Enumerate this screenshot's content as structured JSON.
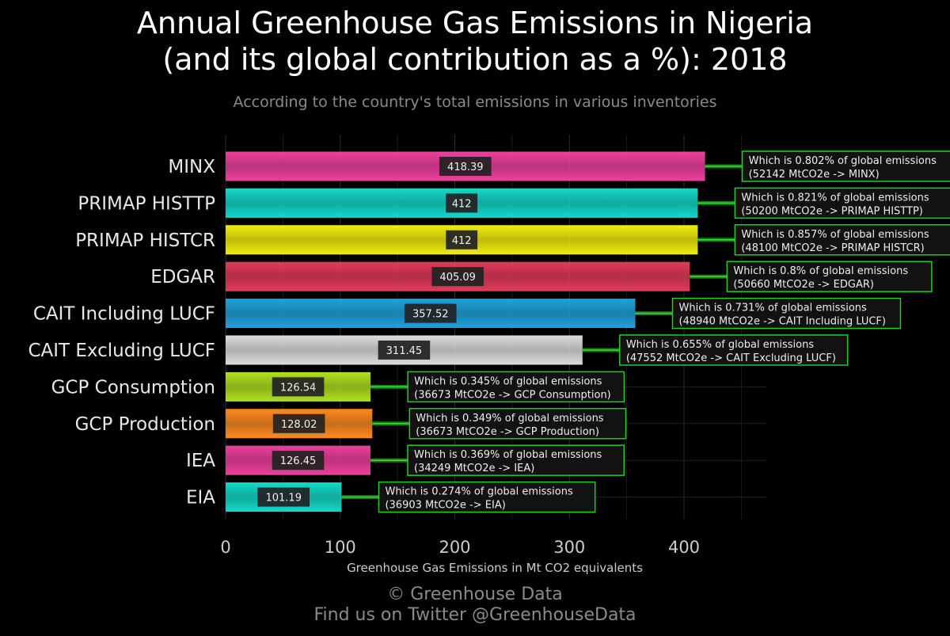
{
  "title_line1": "Annual Greenhouse Gas Emissions in Nigeria",
  "title_line2": "(and its global contribution as a %): 2018",
  "subtitle": "According to the country's total emissions in various inventories",
  "footer_line1": "© Greenhouse Data",
  "footer_line2": "Find us on Twitter @GreenhouseData",
  "colors": {
    "background": "#000000",
    "grid": "#2e2e2e",
    "annotation_border": "#22cc22",
    "annotation_bg": "#121212",
    "label_bg": "#222222"
  },
  "chart_data": {
    "type": "bar",
    "orientation": "horizontal",
    "xlabel": "Greenhouse Gas Emissions in Mt CO2 equivalents",
    "xlim": [
      0,
      470
    ],
    "xticks": [
      0,
      100,
      200,
      300,
      400
    ],
    "grid": true,
    "categories": [
      "MINX",
      "PRIMAP HISTTP",
      "PRIMAP HISTCR",
      "EDGAR",
      "CAIT Including LUCF",
      "CAIT Excluding LUCF",
      "GCP Consumption",
      "GCP Production",
      "IEA",
      "EIA"
    ],
    "values": [
      418.39,
      412,
      412,
      405.09,
      357.52,
      311.45,
      126.54,
      128.02,
      126.45,
      101.19
    ],
    "value_labels": [
      "418.39",
      "412",
      "412",
      "405.09",
      "357.52",
      "311.45",
      "126.54",
      "128.02",
      "126.45",
      "101.19"
    ],
    "bar_colors": [
      "#ef3f9d",
      "#14d9c8",
      "#f0ee10",
      "#e43a5b",
      "#1ea3dc",
      "#dddddd",
      "#b0e020",
      "#ff8a20",
      "#ef3f9d",
      "#14d9c8"
    ],
    "annotations": [
      {
        "line1": "Which is 0.802% of global emissions",
        "line2": "(52142 MtCO2e -> MINX)"
      },
      {
        "line1": "Which is 0.821% of global emissions",
        "line2": "(50200 MtCO2e -> PRIMAP HISTTP)"
      },
      {
        "line1": "Which is 0.857% of global emissions",
        "line2": "(48100 MtCO2e -> PRIMAP HISTCR)"
      },
      {
        "line1": "Which is 0.8% of global emissions",
        "line2": "(50660 MtCO2e -> EDGAR)"
      },
      {
        "line1": "Which is 0.731% of global emissions",
        "line2": "(48940 MtCO2e -> CAIT Including LUCF)"
      },
      {
        "line1": "Which is 0.655% of global emissions",
        "line2": "(47552 MtCO2e -> CAIT Excluding LUCF)"
      },
      {
        "line1": "Which is 0.345% of global emissions",
        "line2": "(36673 MtCO2e -> GCP Consumption)"
      },
      {
        "line1": "Which is 0.349% of global emissions",
        "line2": "(36673 MtCO2e -> GCP Production)"
      },
      {
        "line1": "Which is 0.369% of global emissions",
        "line2": "(34249 MtCO2e -> IEA)"
      },
      {
        "line1": "Which is 0.274% of global emissions",
        "line2": "(36903 MtCO2e -> EIA)"
      }
    ]
  }
}
